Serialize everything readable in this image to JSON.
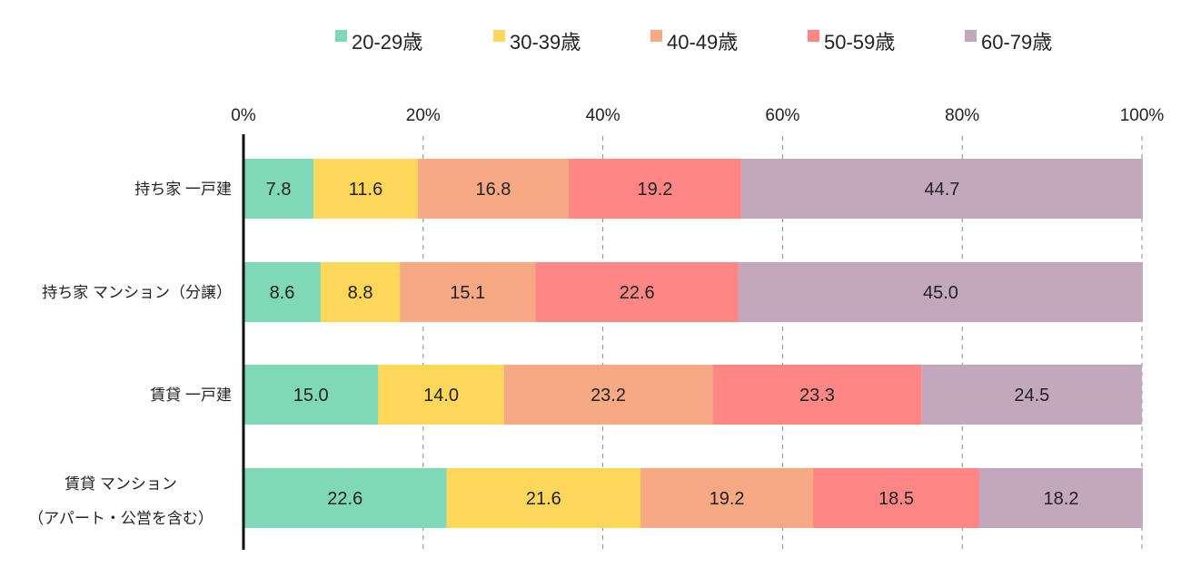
{
  "chart_data": {
    "type": "bar",
    "orientation": "horizontal",
    "stacked": true,
    "title": "",
    "xlabel": "",
    "ylabel": "",
    "xlim": [
      0,
      100
    ],
    "x_ticks": [
      "0%",
      "20%",
      "40%",
      "60%",
      "80%",
      "100%"
    ],
    "grid": "vertical dashed",
    "legend_position": "top",
    "categories": [
      [
        "持ち家 一戸建"
      ],
      [
        "持ち家 マンション（分譲）"
      ],
      [
        "賃貸 一戸建"
      ],
      [
        "賃貸 マンション",
        "（アパート・公営を含む）"
      ]
    ],
    "series": [
      {
        "name": "20-29歳",
        "color": "#7fd8b8",
        "values": [
          7.8,
          8.6,
          15.0,
          22.6
        ],
        "labels": [
          "7.8",
          "8.6",
          "15.0",
          "22.6"
        ]
      },
      {
        "name": "30-39歳",
        "color": "#fdd75a",
        "values": [
          11.6,
          8.8,
          14.0,
          21.6
        ],
        "labels": [
          "11.6",
          "8.8",
          "14.0",
          "21.6"
        ]
      },
      {
        "name": "40-49歳",
        "color": "#f6a982",
        "values": [
          16.8,
          15.1,
          23.2,
          19.2
        ],
        "labels": [
          "16.8",
          "15.1",
          "23.2",
          "19.2"
        ]
      },
      {
        "name": "50-59歳",
        "color": "#fe8785",
        "values": [
          19.2,
          22.6,
          23.3,
          18.5
        ],
        "labels": [
          "19.2",
          "22.6",
          "23.3",
          "18.5"
        ]
      },
      {
        "name": "60-79歳",
        "color": "#c3a7bc",
        "values": [
          44.7,
          45.0,
          24.5,
          18.2
        ],
        "labels": [
          "44.7",
          "45.0",
          "24.5",
          "18.2"
        ]
      }
    ]
  }
}
